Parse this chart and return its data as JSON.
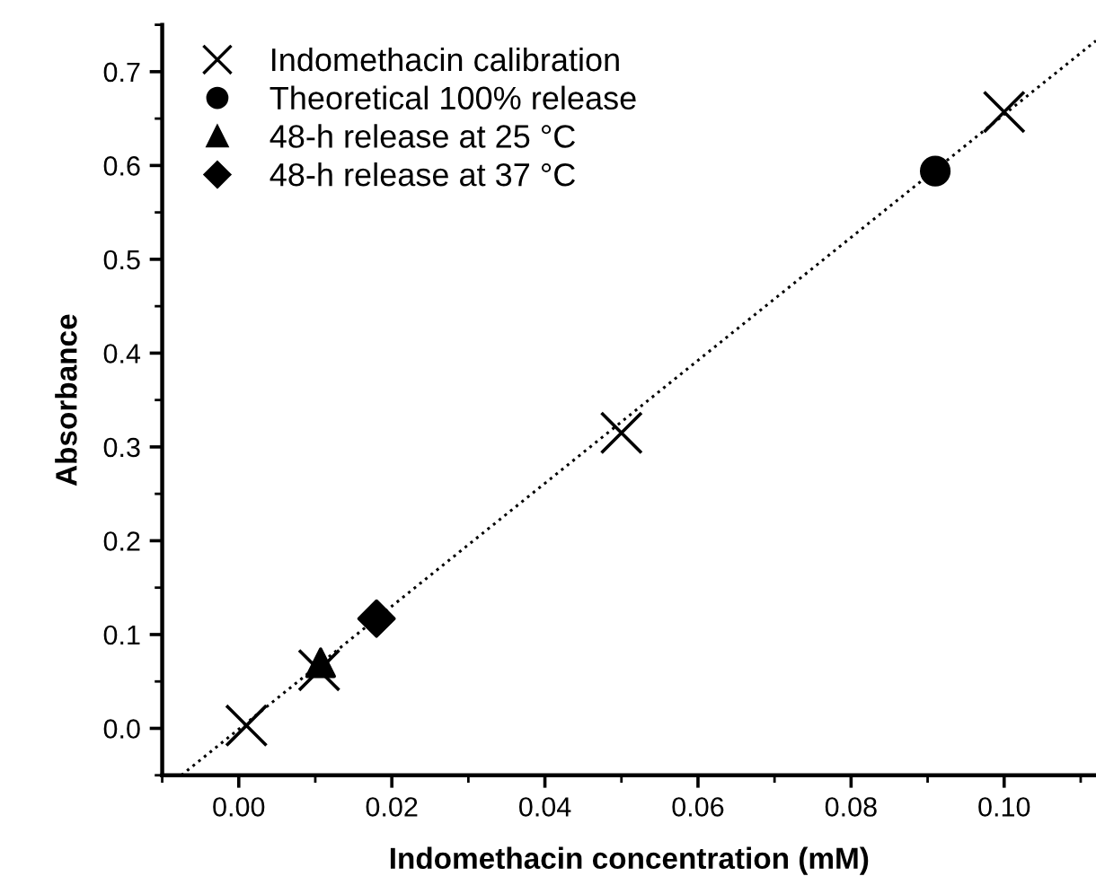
{
  "chart_data": {
    "type": "scatter",
    "xlabel": "Indomethacin concentration (mM)",
    "ylabel": "Absorbance",
    "xlim": [
      -0.01,
      0.112
    ],
    "ylim": [
      -0.05,
      0.75
    ],
    "xticks": [
      {
        "value": 0,
        "label": "0.00"
      },
      0.02,
      0.04,
      0.06,
      0.08,
      {
        "value": 0.1,
        "label": "0.10"
      }
    ],
    "yticks": [
      {
        "value": 0,
        "label": "0.0"
      },
      0.1,
      0.2,
      0.3,
      0.4,
      0.5,
      0.6,
      0.7
    ],
    "grid": false,
    "legend": "top left",
    "series": [
      {
        "name": "Indomethacin calibration",
        "color": "#000000",
        "marker": "cross",
        "x": [
          0.001,
          0.0105,
          0.05,
          0.1
        ],
        "values": [
          0.003,
          0.062,
          0.315,
          0.657
        ]
      },
      {
        "name": "Theoretical 100% release",
        "color": "#000000",
        "marker": "circle",
        "x": [
          0.091
        ],
        "values": [
          0.594
        ]
      },
      {
        "name": "48-h release at 25 °C",
        "color": "#000000",
        "marker": "triangle",
        "x": [
          0.0107
        ],
        "values": [
          0.07
        ]
      },
      {
        "name": "48-h release at 37 °C",
        "color": "#000000",
        "marker": "diamond",
        "x": [
          0.018
        ],
        "values": [
          0.117
        ]
      },
      {
        "type": "line",
        "color": "#000000",
        "marker": "none",
        "line_style": "dotted",
        "x": [
          -0.0075,
          0.112
        ],
        "values": [
          -0.05,
          0.733
        ]
      }
    ]
  }
}
